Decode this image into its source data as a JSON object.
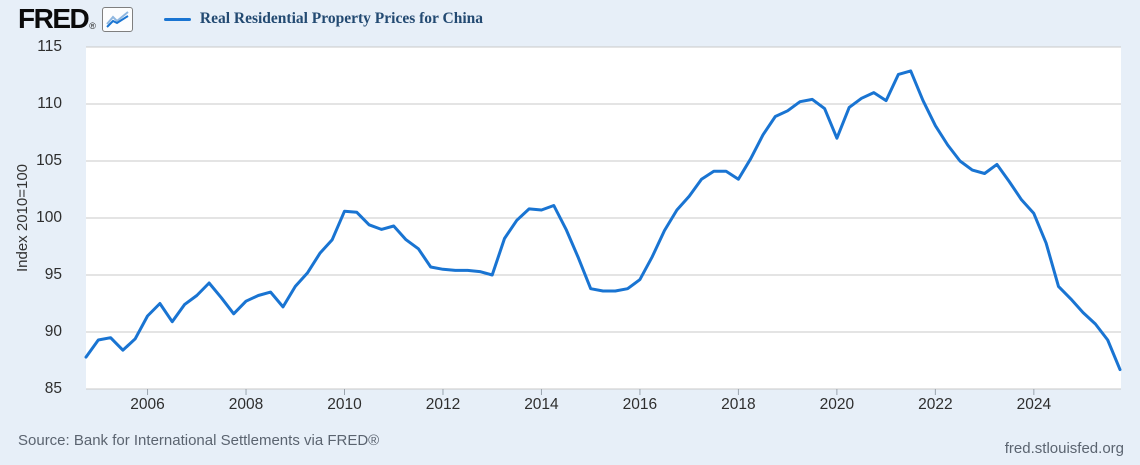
{
  "header": {
    "logo_text": "FRED",
    "logo_registered": "®",
    "series_title": "Real Residential Property Prices for China"
  },
  "footer": {
    "source": "Source: Bank for International Settlements via FRED®",
    "site": "fred.stlouisfed.org"
  },
  "y_axis": {
    "label": "Index 2010=100",
    "ticks": [
      85,
      90,
      95,
      100,
      105,
      110,
      115
    ]
  },
  "x_axis": {
    "ticks": [
      2006,
      2008,
      2010,
      2012,
      2014,
      2016,
      2018,
      2020,
      2022,
      2024
    ]
  },
  "colors": {
    "line": "#1974d2",
    "background": "#e7eff8",
    "plot_background": "#ffffff",
    "gridline": "#c9c9c9",
    "tick_mark": "#9aa4ae",
    "title": "#234a72",
    "footer_text": "#5b6470"
  },
  "chart_data": {
    "type": "line",
    "title": "Real Residential Property Prices for China",
    "ylabel": "Index 2010=100",
    "xlabel": "",
    "ylim": [
      85,
      115
    ],
    "grid": true,
    "legend_position": "top",
    "legend": [
      "Real Residential Property Prices for China"
    ],
    "frequency": "quarterly",
    "start_period": "2004-Q4",
    "end_period": "2025-Q4",
    "x": [
      "2004-Q4",
      "2005-Q1",
      "2005-Q2",
      "2005-Q3",
      "2005-Q4",
      "2006-Q1",
      "2006-Q2",
      "2006-Q3",
      "2006-Q4",
      "2007-Q1",
      "2007-Q2",
      "2007-Q3",
      "2007-Q4",
      "2008-Q1",
      "2008-Q2",
      "2008-Q3",
      "2008-Q4",
      "2009-Q1",
      "2009-Q2",
      "2009-Q3",
      "2009-Q4",
      "2010-Q1",
      "2010-Q2",
      "2010-Q3",
      "2010-Q4",
      "2011-Q1",
      "2011-Q2",
      "2011-Q3",
      "2011-Q4",
      "2012-Q1",
      "2012-Q2",
      "2012-Q3",
      "2012-Q4",
      "2013-Q1",
      "2013-Q2",
      "2013-Q3",
      "2013-Q4",
      "2014-Q1",
      "2014-Q2",
      "2014-Q3",
      "2014-Q4",
      "2015-Q1",
      "2015-Q2",
      "2015-Q3",
      "2015-Q4",
      "2016-Q1",
      "2016-Q2",
      "2016-Q3",
      "2016-Q4",
      "2017-Q1",
      "2017-Q2",
      "2017-Q3",
      "2017-Q4",
      "2018-Q1",
      "2018-Q2",
      "2018-Q3",
      "2018-Q4",
      "2019-Q1",
      "2019-Q2",
      "2019-Q3",
      "2019-Q4",
      "2020-Q1",
      "2020-Q2",
      "2020-Q3",
      "2020-Q4",
      "2021-Q1",
      "2021-Q2",
      "2021-Q3",
      "2021-Q4",
      "2022-Q1",
      "2022-Q2",
      "2022-Q3",
      "2022-Q4",
      "2023-Q1",
      "2023-Q2",
      "2023-Q3",
      "2023-Q4",
      "2024-Q1",
      "2024-Q2",
      "2024-Q3",
      "2024-Q4",
      "2025-Q1",
      "2025-Q2",
      "2025-Q3",
      "2025-Q4"
    ],
    "values": [
      87.8,
      89.3,
      89.5,
      88.4,
      89.4,
      91.4,
      92.5,
      90.9,
      92.4,
      93.2,
      94.3,
      93.0,
      91.6,
      92.7,
      93.2,
      93.5,
      92.2,
      94.0,
      95.2,
      96.9,
      98.1,
      100.6,
      100.5,
      99.4,
      99.0,
      99.3,
      98.1,
      97.3,
      95.7,
      95.5,
      95.4,
      95.4,
      95.3,
      95.0,
      98.2,
      99.8,
      100.8,
      100.7,
      101.1,
      99.0,
      96.5,
      93.8,
      93.6,
      93.6,
      93.8,
      94.6,
      96.6,
      98.9,
      100.7,
      101.9,
      103.4,
      104.1,
      104.1,
      103.4,
      105.2,
      107.3,
      108.9,
      109.4,
      110.2,
      110.4,
      109.6,
      107.0,
      109.7,
      110.5,
      111.0,
      110.3,
      112.6,
      112.9,
      110.3,
      108.1,
      106.4,
      105.0,
      104.2,
      103.9,
      104.7,
      103.2,
      101.6,
      100.4,
      97.8,
      94.0,
      92.9,
      91.7,
      90.7,
      89.3,
      86.7
    ]
  }
}
